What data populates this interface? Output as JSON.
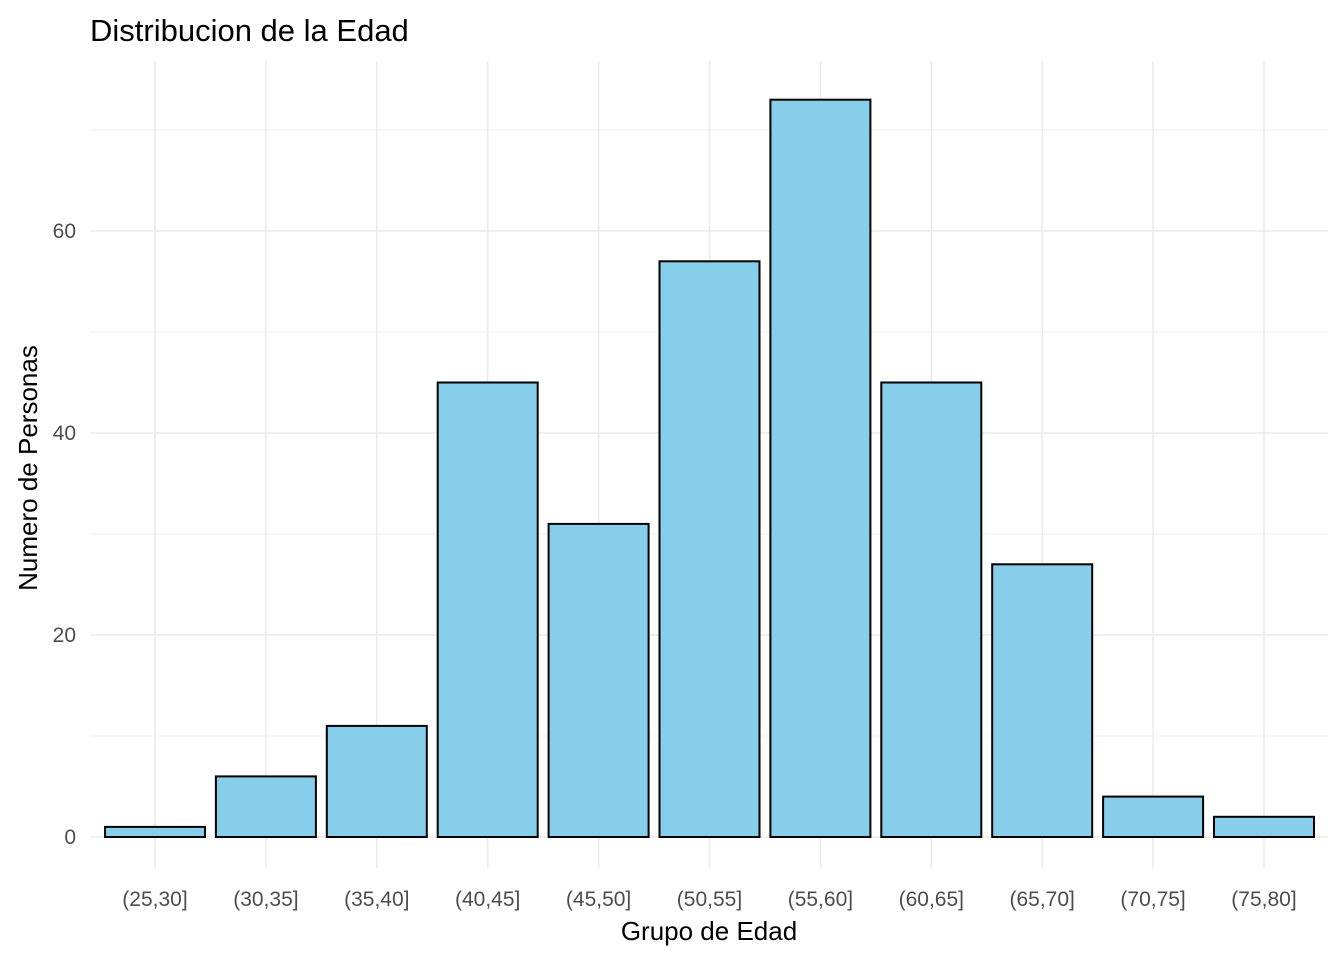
{
  "chart_data": {
    "type": "bar",
    "title": "Distribucion de la Edad",
    "xlabel": "Grupo de Edad",
    "ylabel": "Numero de Personas",
    "categories": [
      "(25,30]",
      "(30,35]",
      "(35,40]",
      "(40,45]",
      "(45,50]",
      "(50,55]",
      "(55,60]",
      "(60,65]",
      "(65,70]",
      "(70,75]",
      "(75,80]"
    ],
    "values": [
      1,
      6,
      11,
      45,
      31,
      57,
      73,
      45,
      27,
      4,
      2
    ],
    "ylim": [
      -3,
      77
    ],
    "yticks": [
      0,
      20,
      40,
      60
    ],
    "yticks_minor": [
      10,
      30,
      50,
      70
    ],
    "grid": true,
    "legend": "none",
    "bar_color": "#87CEEB",
    "bar_edge_color": "#000000"
  }
}
